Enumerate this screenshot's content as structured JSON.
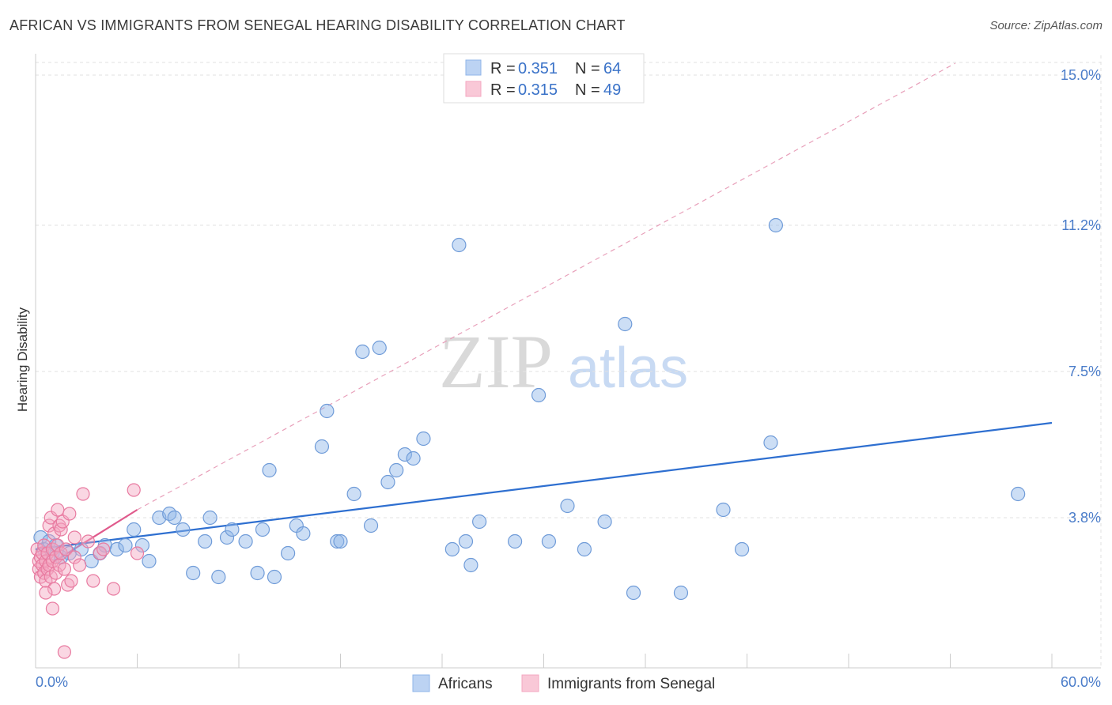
{
  "title": "AFRICAN VS IMMIGRANTS FROM SENEGAL HEARING DISABILITY CORRELATION CHART",
  "source": "Source: ZipAtlas.com",
  "colors": {
    "blue": "#8fb5e8",
    "blue_stroke": "#6f9bd8",
    "blue_line": "#2e6fd0",
    "pink": "#f4a7c0",
    "pink_stroke": "#e87aa0",
    "pink_line": "#e05a8c",
    "grid": "#e2e2e2",
    "tick_text": "#4a7cc9"
  },
  "chart_data": {
    "type": "scatter",
    "title": "AFRICAN VS IMMIGRANTS FROM SENEGAL HEARING DISABILITY CORRELATION CHART",
    "xlabel": "",
    "ylabel": "Hearing Disability",
    "xlim": [
      0,
      60
    ],
    "ylim": [
      0,
      15.5
    ],
    "x_tick_labels": [
      "0.0%",
      "60.0%"
    ],
    "y_ticks": [
      3.8,
      7.5,
      11.2,
      15.0
    ],
    "y_tick_labels": [
      "3.8%",
      "7.5%",
      "11.2%",
      "15.0%"
    ],
    "watermark": {
      "zip": "ZIP",
      "atlas": "atlas"
    },
    "legend": [
      {
        "r_label": "R =",
        "r_value": "0.351",
        "n_label": "N =",
        "n_value": "64"
      },
      {
        "r_label": "R =",
        "r_value": "0.315",
        "n_label": "N =",
        "n_value": "49"
      }
    ],
    "series": [
      {
        "name": "Africans",
        "trend": {
          "x": [
            0,
            60
          ],
          "y": [
            3.0,
            6.2
          ]
        },
        "points": [
          [
            0.3,
            3.3
          ],
          [
            0.5,
            3.0
          ],
          [
            0.8,
            3.2
          ],
          [
            1.0,
            2.9
          ],
          [
            1.2,
            3.1
          ],
          [
            1.5,
            2.8
          ],
          [
            2.0,
            2.9
          ],
          [
            2.7,
            3.0
          ],
          [
            3.3,
            2.7
          ],
          [
            3.8,
            2.9
          ],
          [
            4.1,
            3.1
          ],
          [
            4.8,
            3.0
          ],
          [
            5.3,
            3.1
          ],
          [
            5.8,
            3.5
          ],
          [
            6.3,
            3.1
          ],
          [
            6.7,
            2.7
          ],
          [
            7.3,
            3.8
          ],
          [
            7.9,
            3.9
          ],
          [
            8.2,
            3.8
          ],
          [
            8.7,
            3.5
          ],
          [
            9.3,
            2.4
          ],
          [
            10.0,
            3.2
          ],
          [
            10.3,
            3.8
          ],
          [
            10.8,
            2.3
          ],
          [
            11.3,
            3.3
          ],
          [
            11.6,
            3.5
          ],
          [
            12.4,
            3.2
          ],
          [
            13.1,
            2.4
          ],
          [
            13.4,
            3.5
          ],
          [
            13.8,
            5.0
          ],
          [
            14.1,
            2.3
          ],
          [
            14.9,
            2.9
          ],
          [
            15.4,
            3.6
          ],
          [
            15.8,
            3.4
          ],
          [
            16.9,
            5.6
          ],
          [
            17.2,
            6.5
          ],
          [
            17.8,
            3.2
          ],
          [
            18.0,
            3.2
          ],
          [
            18.8,
            4.4
          ],
          [
            19.3,
            8.0
          ],
          [
            19.8,
            3.6
          ],
          [
            20.3,
            8.1
          ],
          [
            20.8,
            4.7
          ],
          [
            21.3,
            5.0
          ],
          [
            21.8,
            5.4
          ],
          [
            22.3,
            5.3
          ],
          [
            22.9,
            5.8
          ],
          [
            24.6,
            3.0
          ],
          [
            25.0,
            10.7
          ],
          [
            25.4,
            3.2
          ],
          [
            25.7,
            2.6
          ],
          [
            26.2,
            3.7
          ],
          [
            28.3,
            3.2
          ],
          [
            29.7,
            6.9
          ],
          [
            30.3,
            3.2
          ],
          [
            31.4,
            4.1
          ],
          [
            32.4,
            3.0
          ],
          [
            33.6,
            3.7
          ],
          [
            34.8,
            8.7
          ],
          [
            35.3,
            1.9
          ],
          [
            38.1,
            1.9
          ],
          [
            40.6,
            4.0
          ],
          [
            41.7,
            3.0
          ],
          [
            43.4,
            5.7
          ],
          [
            43.7,
            11.2
          ],
          [
            58.0,
            4.4
          ]
        ]
      },
      {
        "name": "Immigrants from Senegal",
        "trend": {
          "x": [
            0,
            6.0
          ],
          "y": [
            2.4,
            4.0
          ]
        },
        "trend_extended": {
          "x": [
            6.0,
            54.3
          ],
          "y": [
            4.0,
            15.3
          ]
        },
        "points": [
          [
            0.1,
            3.0
          ],
          [
            0.2,
            2.5
          ],
          [
            0.2,
            2.7
          ],
          [
            0.3,
            2.8
          ],
          [
            0.3,
            2.3
          ],
          [
            0.4,
            2.9
          ],
          [
            0.4,
            2.6
          ],
          [
            0.5,
            3.1
          ],
          [
            0.5,
            2.4
          ],
          [
            0.6,
            2.7
          ],
          [
            0.6,
            2.2
          ],
          [
            0.7,
            2.9
          ],
          [
            0.7,
            2.5
          ],
          [
            0.8,
            3.6
          ],
          [
            0.8,
            2.6
          ],
          [
            0.9,
            3.8
          ],
          [
            0.9,
            2.3
          ],
          [
            1.0,
            3.0
          ],
          [
            1.0,
            2.7
          ],
          [
            1.1,
            3.4
          ],
          [
            1.1,
            2.0
          ],
          [
            1.2,
            2.8
          ],
          [
            1.2,
            2.4
          ],
          [
            1.3,
            4.0
          ],
          [
            1.3,
            3.1
          ],
          [
            1.4,
            3.6
          ],
          [
            1.4,
            2.6
          ],
          [
            1.5,
            2.9
          ],
          [
            1.5,
            3.5
          ],
          [
            1.6,
            3.7
          ],
          [
            1.7,
            2.5
          ],
          [
            1.8,
            3.0
          ],
          [
            1.9,
            2.1
          ],
          [
            2.0,
            3.9
          ],
          [
            2.1,
            2.2
          ],
          [
            2.3,
            2.8
          ],
          [
            2.6,
            2.6
          ],
          [
            2.8,
            4.4
          ],
          [
            3.1,
            3.2
          ],
          [
            3.4,
            2.2
          ],
          [
            3.8,
            2.9
          ],
          [
            4.0,
            3.0
          ],
          [
            4.6,
            2.0
          ],
          [
            5.8,
            4.5
          ],
          [
            6.0,
            2.9
          ],
          [
            1.0,
            1.5
          ],
          [
            1.7,
            0.4
          ],
          [
            0.6,
            1.9
          ],
          [
            2.3,
            3.3
          ]
        ]
      }
    ]
  },
  "bottom_legend": [
    {
      "label": "Africans"
    },
    {
      "label": "Immigrants from Senegal"
    }
  ]
}
